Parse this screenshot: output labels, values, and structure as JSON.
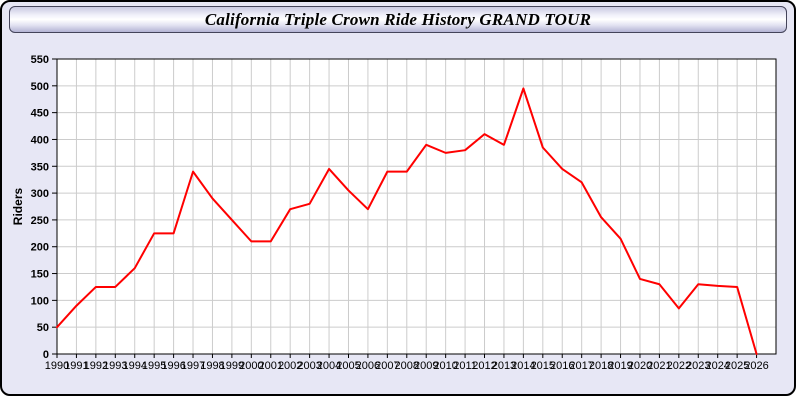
{
  "window": {
    "title": "California Triple Crown Ride History GRAND TOUR"
  },
  "colors": {
    "line": "#ff0000",
    "grid": "#cccccc",
    "axis": "#000000",
    "label": "#000000",
    "plot_background": "#ffffff",
    "window_background": "#e7e7f5"
  },
  "chart_data": {
    "type": "line",
    "title": "California Triple Crown Ride History GRAND TOUR",
    "xlabel": "",
    "ylabel": "Riders",
    "grid": true,
    "legend_position": "none",
    "ylim": [
      0,
      550
    ],
    "ytick_step": 50,
    "x_range": [
      1990,
      2026
    ],
    "years": [
      1990,
      1991,
      1992,
      1993,
      1994,
      1995,
      1996,
      1997,
      1998,
      1999,
      2000,
      2001,
      2002,
      2003,
      2004,
      2005,
      2006,
      2007,
      2008,
      2009,
      2010,
      2011,
      2012,
      2013,
      2014,
      2015,
      2016,
      2017,
      2018,
      2019,
      2020,
      2021,
      2022,
      2023,
      2024,
      2025,
      2026
    ],
    "series": [
      {
        "name": "Riders",
        "color": "#ff0000",
        "values": [
          50,
          90,
          125,
          125,
          160,
          225,
          225,
          340,
          290,
          250,
          210,
          210,
          270,
          280,
          345,
          305,
          270,
          340,
          340,
          390,
          375,
          380,
          410,
          390,
          495,
          385,
          345,
          320,
          255,
          215,
          140,
          130,
          85,
          130,
          127,
          125,
          0
        ]
      }
    ]
  }
}
